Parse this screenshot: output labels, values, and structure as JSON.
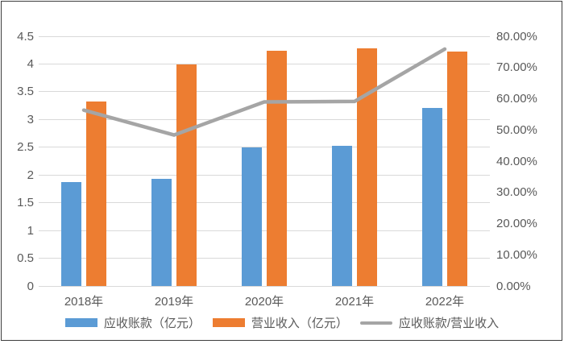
{
  "chart_data": {
    "type": "bar",
    "subtype": "grouped-bars-with-line-dual-axis",
    "title": "",
    "categories": [
      "2018年",
      "2019年",
      "2020年",
      "2021年",
      "2022年"
    ],
    "series": [
      {
        "name": "应收账款（亿元）",
        "type": "bar",
        "axis": "left",
        "color": "#5b9bd5",
        "values": [
          1.87,
          1.93,
          2.5,
          2.53,
          3.21
        ]
      },
      {
        "name": "营业收入（亿元）",
        "type": "bar",
        "axis": "left",
        "color": "#ed7d31",
        "values": [
          3.32,
          3.99,
          4.24,
          4.28,
          4.23
        ]
      },
      {
        "name": "应收账款/营业收入",
        "type": "line",
        "axis": "right",
        "color": "#a5a5a5",
        "values": [
          56.33,
          48.37,
          58.96,
          59.11,
          75.89
        ]
      }
    ],
    "left_axis": {
      "min": 0,
      "max": 4.5,
      "step": 0.5,
      "ticks": [
        "4.5",
        "4",
        "3.5",
        "3",
        "2.5",
        "2",
        "1.5",
        "1",
        "0.5",
        "0"
      ]
    },
    "right_axis": {
      "min": 0,
      "max": 80,
      "step": 10,
      "ticks": [
        "80.00%",
        "70.00%",
        "60.00%",
        "50.00%",
        "40.00%",
        "30.00%",
        "20.00%",
        "10.00%",
        "0.00%"
      ]
    },
    "grid": true,
    "legend_position": "bottom",
    "xlabel": "",
    "ylabel": ""
  },
  "colors": {
    "bar_blue": "#5b9bd5",
    "bar_orange": "#ed7d31",
    "line_gray": "#a5a5a5",
    "gridline": "#d9d9d9",
    "axis_text": "#595959",
    "border": "#3c3c3c",
    "background": "#ffffff"
  }
}
